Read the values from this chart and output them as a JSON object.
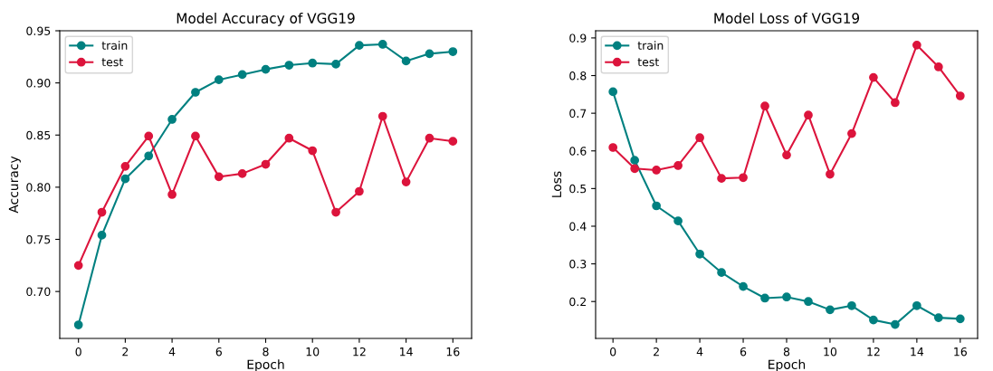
{
  "chart_data": [
    {
      "type": "line",
      "title": "Model Accuracy of VGG19",
      "xlabel": "Epoch",
      "ylabel": "Accuracy",
      "x": [
        0,
        1,
        2,
        3,
        4,
        5,
        6,
        7,
        8,
        9,
        10,
        11,
        12,
        13,
        14,
        15,
        16
      ],
      "xlim": [
        -0.8,
        16.8
      ],
      "xticks": [
        0,
        2,
        4,
        6,
        8,
        10,
        12,
        14,
        16
      ],
      "ylim": [
        0.655,
        0.95
      ],
      "yticks": [
        {
          "value": 0.7,
          "label": "0.70"
        },
        {
          "value": 0.75,
          "label": "0.75"
        },
        {
          "value": 0.8,
          "label": "0.80"
        },
        {
          "value": 0.85,
          "label": "0.85"
        },
        {
          "value": 0.9,
          "label": "0.90"
        },
        {
          "value": 0.95,
          "label": "0.95"
        }
      ],
      "marker": "circle",
      "legend": "top left",
      "grid": false,
      "series": [
        {
          "name": "train",
          "color": "#008080",
          "values": [
            0.668,
            0.754,
            0.808,
            0.83,
            0.865,
            0.891,
            0.903,
            0.908,
            0.913,
            0.917,
            0.919,
            0.918,
            0.936,
            0.937,
            0.921,
            0.928,
            0.93
          ]
        },
        {
          "name": "test",
          "color": "#dc143c",
          "values": [
            0.725,
            0.776,
            0.82,
            0.849,
            0.793,
            0.849,
            0.81,
            0.813,
            0.822,
            0.847,
            0.835,
            0.776,
            0.796,
            0.868,
            0.805,
            0.847,
            0.844
          ]
        }
      ]
    },
    {
      "type": "line",
      "title": "Model Loss of VGG19",
      "xlabel": "Epoch",
      "ylabel": "Loss",
      "x": [
        0,
        1,
        2,
        3,
        4,
        5,
        6,
        7,
        8,
        9,
        10,
        11,
        12,
        13,
        14,
        15,
        16
      ],
      "xlim": [
        -0.8,
        16.8
      ],
      "xticks": [
        0,
        2,
        4,
        6,
        8,
        10,
        12,
        14,
        16
      ],
      "ylim": [
        0.102,
        0.919
      ],
      "yticks": [
        0.2,
        0.3,
        0.4,
        0.5,
        0.6,
        0.7,
        0.8,
        0.9
      ],
      "marker": "circle",
      "legend": "top left",
      "grid": false,
      "series": [
        {
          "name": "train",
          "color": "#008080",
          "values": [
            0.757,
            0.575,
            0.454,
            0.414,
            0.326,
            0.277,
            0.24,
            0.209,
            0.212,
            0.2,
            0.178,
            0.189,
            0.151,
            0.139,
            0.189,
            0.157,
            0.154
          ]
        },
        {
          "name": "test",
          "color": "#dc143c",
          "values": [
            0.609,
            0.553,
            0.549,
            0.561,
            0.635,
            0.527,
            0.529,
            0.719,
            0.589,
            0.695,
            0.538,
            0.646,
            0.795,
            0.728,
            0.881,
            0.823,
            0.746
          ]
        }
      ]
    }
  ]
}
